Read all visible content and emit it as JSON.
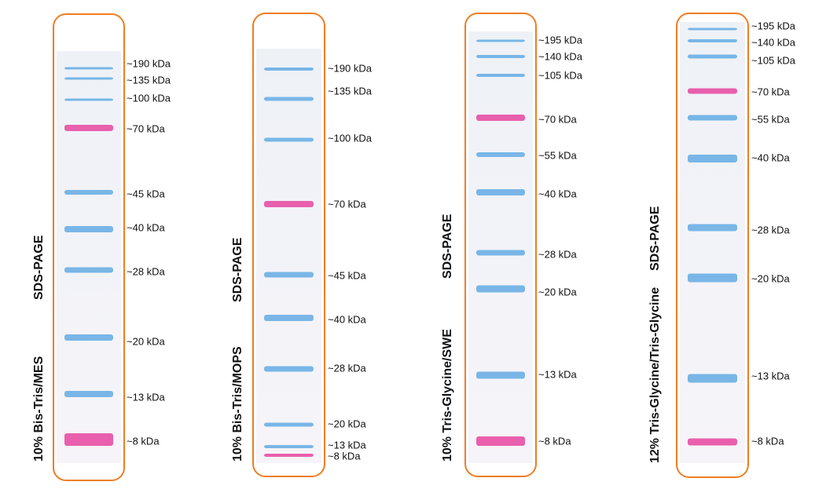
{
  "panels": [
    {
      "label": "10% Bis-Tris/MES",
      "method": "SDS-PAGE",
      "markers": [
        "~190 kDa",
        "~135 kDa",
        "~100 kDa",
        "~70 kDa",
        "~45 kDa",
        "~40 kDa",
        "~28 kDa",
        "~20 kDa",
        "~13 kDa",
        "~8 kDa"
      ]
    },
    {
      "label": "10% Bis-Tris/MOPS",
      "method": "SDS-PAGE",
      "markers": [
        "~190 kDa",
        "~135 kDa",
        "~100 kDa",
        "~70 kDa",
        "~45 kDa",
        "~40 kDa",
        "~28 kDa",
        "~20 kDa",
        "~13 kDa",
        "~8 kDa"
      ]
    },
    {
      "label": "10% Tris-Glycine/SWE",
      "method": "SDS-PAGE",
      "markers": [
        "~195 kDa",
        "~140 kDa",
        "~105 kDa",
        "~70 kDa",
        "~55 kDa",
        "~40 kDa",
        "~28 kDa",
        "~20 kDa",
        "~13 kDa",
        "~8 kDa"
      ]
    },
    {
      "label": "12% Tris-Glycine/Tris-Glycine",
      "method": "SDS-PAGE",
      "markers": [
        "~195 kDa",
        "~140 kDa",
        "~105 kDa",
        "~70 kDa",
        "~55 kDa",
        "~40 kDa",
        "~28 kDa",
        "~20 kDa",
        "~13 kDa",
        "~8 kDa"
      ]
    }
  ]
}
